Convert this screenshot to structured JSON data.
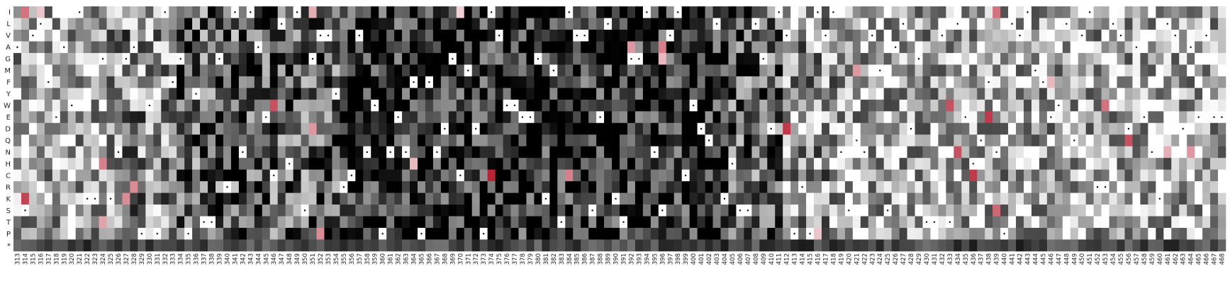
{
  "chart_data": {
    "type": "heatmap",
    "title": "",
    "xlabel": "",
    "ylabel": "",
    "y_categories": [
      "I",
      "L",
      "V",
      "A",
      "G",
      "M",
      "F",
      "Y",
      "W",
      "E",
      "D",
      "Q",
      "N",
      "H",
      "C",
      "R",
      "K",
      "S",
      "T",
      "P",
      "*"
    ],
    "x_range": [
      313,
      468
    ],
    "colorscale": {
      "low": "#000000",
      "mid": "#ffffff",
      "high": "#b2182b"
    },
    "value_range": [
      -1,
      1
    ],
    "marker": "•",
    "marker_note": "dots mark the wild-type residue at each position",
    "wild_type": {
      "313": "A",
      "314": "S",
      "315": "V",
      "316": "L",
      "317": "F",
      "318": "E",
      "319": "A",
      "320": "W",
      "321": "I",
      "322": "K",
      "323": "K",
      "324": "G",
      "325": "K",
      "326": "N",
      "327": "G",
      "328": "A",
      "329": "P",
      "330": "W",
      "331": "P",
      "332": "I",
      "333": "F",
      "334": "G",
      "335": "P",
      "336": "Y",
      "337": "T",
      "338": "T",
      "339": "G",
      "340": "R",
      "341": "I",
      "342": "N",
      "343": "I",
      "344": "A",
      "345": "E",
      "346": "C",
      "347": "L",
      "348": "H",
      "349": "I",
      "350": "S",
      "351": "G",
      "352": "V",
      "353": "V",
      "354": "Y",
      "355": "R",
      "356": "C",
      "357": "V",
      "358": "N",
      "359": "W",
      "360": "P",
      "361": "N",
      "362": "E",
      "363": "N",
      "364": "F",
      "365": "P",
      "366": "F",
      "367": "N",
      "368": "D",
      "369": "G",
      "370": "C",
      "371": "M",
      "372": "D",
      "373": "P",
      "374": "I",
      "375": "V",
      "376": "W",
      "377": "W",
      "378": "E",
      "379": "E",
      "380": "G",
      "381": "K",
      "382": "M",
      "383": "T",
      "384": "I",
      "385": "V",
      "386": "V",
      "387": "S",
      "388": "E",
      "389": "L",
      "390": "K",
      "391": "T",
      "392": "G",
      "393": "G",
      "394": "I",
      "395": "N",
      "396": "S",
      "397": "V",
      "398": "I",
      "399": "C",
      "400": "W",
      "401": "D",
      "402": "Q",
      "403": "L",
      "404": "K",
      "405": "H",
      "406": "S",
      "407": "S",
      "408": "L",
      "409": "G",
      "410": "D",
      "411": "I",
      "412": "V",
      "413": "P",
      "414": "R",
      "415": "P",
      "416": "I",
      "417": "V",
      "418": "I",
      "419": "N",
      "420": "S",
      "421": "Q",
      "422": "N",
      "423": "V",
      "424": "M",
      "425": "S",
      "426": "A",
      "427": "L",
      "428": "D",
      "429": "G",
      "430": "T",
      "431": "T",
      "432": "V",
      "433": "T",
      "434": "L",
      "435": "E",
      "436": "H",
      "437": "Q",
      "438": "F",
      "439": "N",
      "440": "P",
      "441": "L",
      "442": "V",
      "443": "I",
      "444": "M",
      "445": "F",
      "446": "E",
      "447": "W",
      "448": "L",
      "449": "Q",
      "450": "V",
      "451": "I",
      "452": "R",
      "453": "R",
      "454": "L",
      "455": "V",
      "456": "D",
      "457": "A",
      "458": "E",
      "459": "N",
      "460": "K",
      "461": "L",
      "462": "V",
      "463": "D",
      "464": "A",
      "465": "E",
      "466": "V",
      "467": "E",
      "468": "E"
    },
    "red_cells": [
      [
        "313",
        "A",
        0.55
      ],
      [
        "314",
        "I",
        0.6
      ],
      [
        "314",
        "K",
        0.8
      ],
      [
        "316",
        "I",
        0.25
      ],
      [
        "323",
        "K",
        0.35
      ],
      [
        "324",
        "T",
        0.4
      ],
      [
        "324",
        "H",
        0.55
      ],
      [
        "327",
        "K",
        0.5
      ],
      [
        "328",
        "R",
        0.5
      ],
      [
        "333",
        "F",
        0.5
      ],
      [
        "336",
        "Y",
        0.65
      ],
      [
        "343",
        "I",
        0.45
      ],
      [
        "344",
        "A",
        0.45
      ],
      [
        "346",
        "W",
        0.75
      ],
      [
        "351",
        "I",
        0.35
      ],
      [
        "351",
        "D",
        0.45
      ],
      [
        "352",
        "P",
        0.5
      ],
      [
        "364",
        "H",
        0.3
      ],
      [
        "367",
        "N",
        0.95
      ],
      [
        "370",
        "I",
        0.2
      ],
      [
        "374",
        "C",
        0.95
      ],
      [
        "375",
        "V",
        0.3
      ],
      [
        "378",
        "E",
        0.6
      ],
      [
        "380",
        "G",
        0.55
      ],
      [
        "384",
        "C",
        0.55
      ],
      [
        "392",
        "A",
        0.45
      ],
      [
        "396",
        "A",
        0.55
      ],
      [
        "396",
        "G",
        0.3
      ],
      [
        "404",
        "K",
        0.45
      ],
      [
        "406",
        "S",
        0.35
      ],
      [
        "412",
        "D",
        0.85
      ],
      [
        "415",
        "P",
        0.35
      ],
      [
        "416",
        "P",
        0.25
      ],
      [
        "421",
        "M",
        0.45
      ],
      [
        "428",
        "D",
        0.55
      ],
      [
        "433",
        "W",
        0.75
      ],
      [
        "434",
        "N",
        0.75
      ],
      [
        "436",
        "C",
        0.85
      ],
      [
        "438",
        "E",
        0.85
      ],
      [
        "438",
        "F",
        0.95
      ],
      [
        "439",
        "I",
        0.6
      ],
      [
        "439",
        "S",
        0.65
      ],
      [
        "446",
        "F",
        0.3
      ],
      [
        "453",
        "W",
        0.6
      ],
      [
        "456",
        "Q",
        0.75
      ],
      [
        "461",
        "N",
        0.35
      ],
      [
        "464",
        "N",
        0.45
      ]
    ]
  }
}
